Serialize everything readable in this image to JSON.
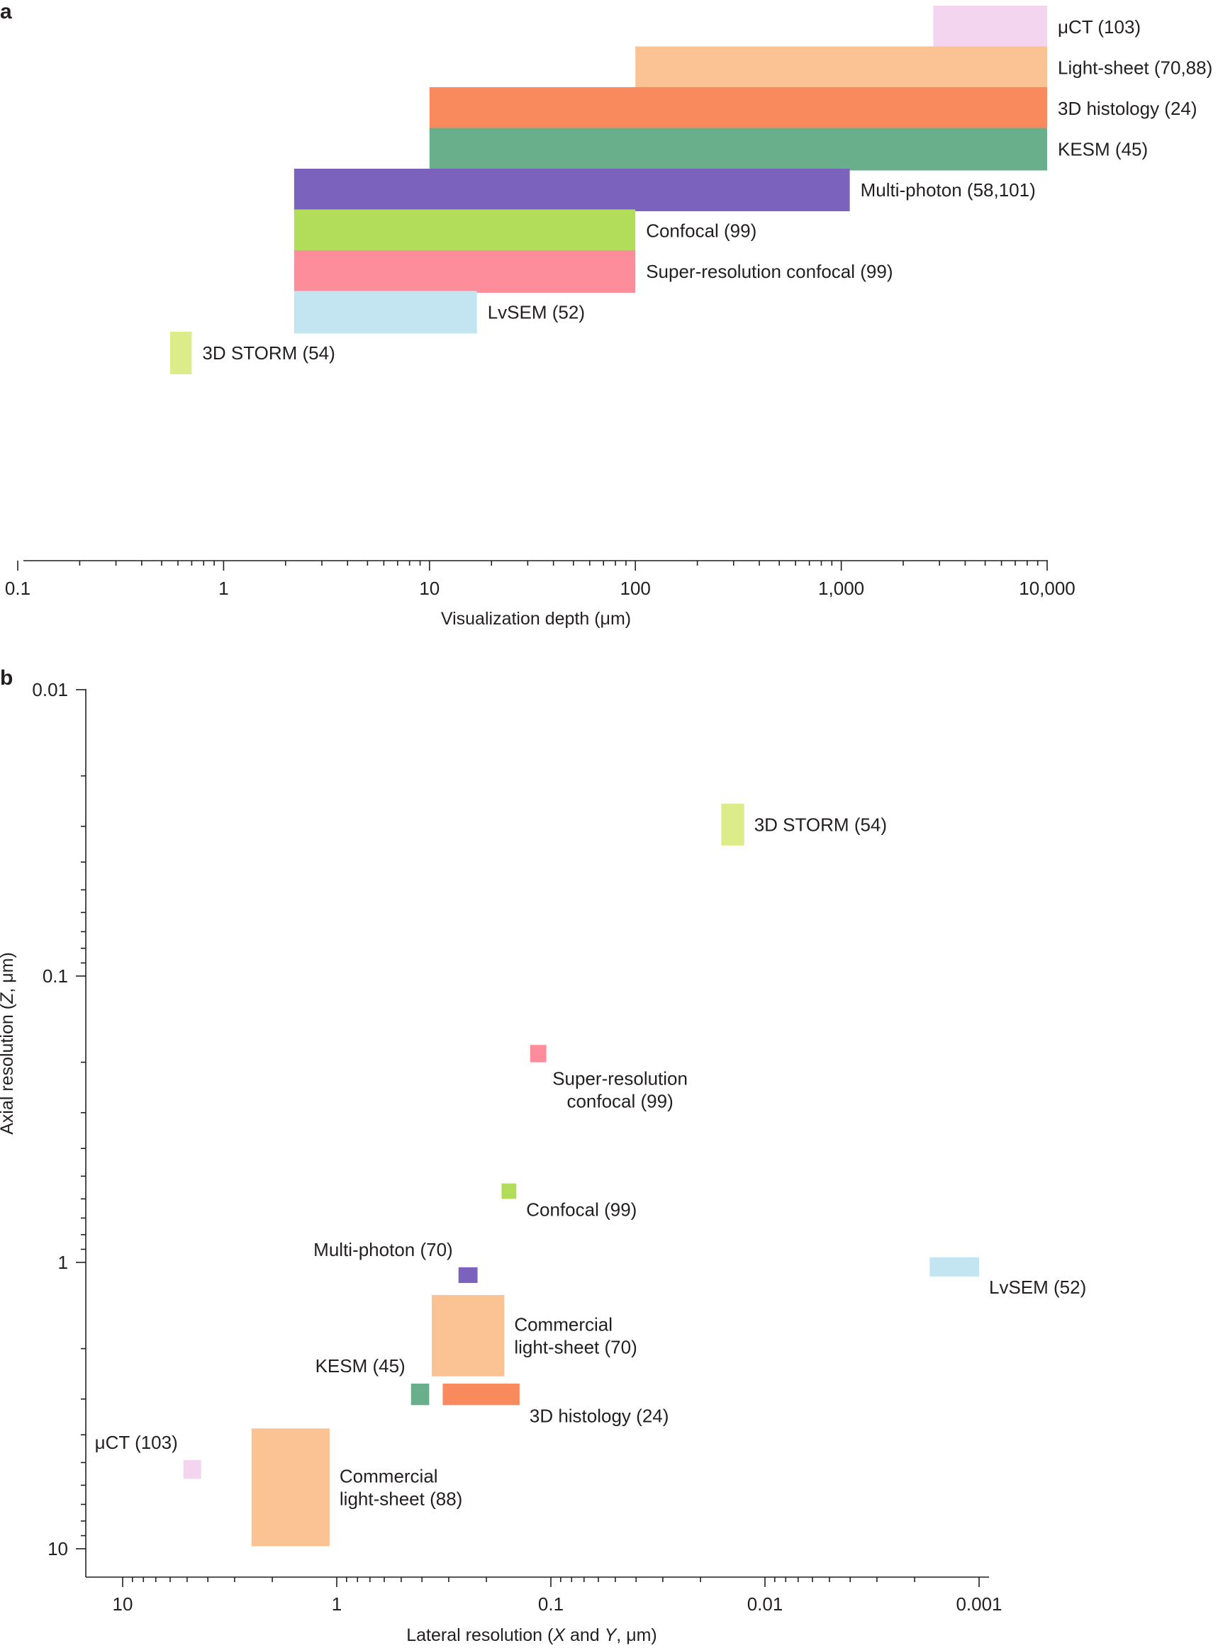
{
  "chart_data": [
    {
      "panel": "a",
      "type": "bar",
      "orientation": "horizontal",
      "xscale": "log",
      "xlabel": "Visualization depth (μm)",
      "xlim": [
        0.1,
        10000
      ],
      "xticks": [
        {
          "value": 0.1,
          "label": "0.1"
        },
        {
          "value": 1,
          "label": "1"
        },
        {
          "value": 10,
          "label": "10"
        },
        {
          "value": 100,
          "label": "100"
        },
        {
          "value": 1000,
          "label": "1,000"
        },
        {
          "value": 10000,
          "label": "10,000"
        }
      ],
      "series": [
        {
          "name": "μCT (103)",
          "min": 2800,
          "max": 10000,
          "color": "#f3d5f0"
        },
        {
          "name": "Light-sheet (70,88)",
          "min": 100,
          "max": 10000,
          "color": "#fbc394"
        },
        {
          "name": "3D histology (24)",
          "min": 10,
          "max": 10000,
          "color": "#f88a5e"
        },
        {
          "name": "KESM (45)",
          "min": 10,
          "max": 10000,
          "color": "#6aaf8b"
        },
        {
          "name": "Multi-photon (58,101)",
          "min": 2.2,
          "max": 1100,
          "color": "#7b63bd"
        },
        {
          "name": "Confocal (99)",
          "min": 2.2,
          "max": 100,
          "color": "#b2dd5b"
        },
        {
          "name": "Super-resolution confocal (99)",
          "min": 2.2,
          "max": 100,
          "color": "#fe8d9c"
        },
        {
          "name": "LvSEM (52)",
          "min": 2.2,
          "max": 17,
          "color": "#c3e5f2"
        },
        {
          "name": "3D STORM (54)",
          "min": 0.55,
          "max": 0.7,
          "color": "#dcec8a"
        }
      ]
    },
    {
      "panel": "b",
      "type": "scatter",
      "xscale": "log",
      "yscale": "log",
      "xreversed": true,
      "yreversed": true,
      "xlabel_parts": [
        {
          "text": "Lateral resolution (",
          "italic": false
        },
        {
          "text": "X",
          "italic": true
        },
        {
          "text": " and ",
          "italic": false
        },
        {
          "text": "Y",
          "italic": true
        },
        {
          "text": ", μm)",
          "italic": false
        }
      ],
      "ylabel_parts": [
        {
          "text": "Axial resolution (",
          "italic": false
        },
        {
          "text": "Z",
          "italic": true
        },
        {
          "text": ", μm)",
          "italic": false
        }
      ],
      "xlim": [
        10,
        0.001
      ],
      "ylim": [
        0.01,
        10
      ],
      "xticks": [
        {
          "value": 10,
          "label": "10"
        },
        {
          "value": 1,
          "label": "1"
        },
        {
          "value": 0.1,
          "label": "0.1"
        },
        {
          "value": 0.01,
          "label": "0.01"
        },
        {
          "value": 0.001,
          "label": "0.001"
        }
      ],
      "yticks": [
        {
          "value": 0.01,
          "label": "0.01"
        },
        {
          "value": 0.1,
          "label": "0.1"
        },
        {
          "value": 1,
          "label": "1"
        },
        {
          "value": 10,
          "label": "10"
        }
      ],
      "series": [
        {
          "name": "3D STORM (54)",
          "label_lines": [
            "3D STORM (54)"
          ],
          "x_range": [
            0.016,
            0.0125
          ],
          "y_range": [
            0.025,
            0.035
          ],
          "color": "#dcec8a",
          "label_anchor": "start"
        },
        {
          "name": "Super-resolution confocal (99)",
          "label_lines": [
            "Super-resolution",
            "confocal (99)"
          ],
          "x_range": [
            0.125,
            0.105
          ],
          "y_range": [
            0.174,
            0.2
          ],
          "color": "#fe8d9c",
          "label_anchor": "middle"
        },
        {
          "name": "Confocal (99)",
          "label_lines": [
            "Confocal (99)"
          ],
          "x_range": [
            0.17,
            0.145
          ],
          "y_range": [
            0.53,
            0.6
          ],
          "color": "#b2dd5b",
          "label_anchor": "start"
        },
        {
          "name": "Multi-photon (70)",
          "label_lines": [
            "Multi-photon (70)"
          ],
          "x_range": [
            0.27,
            0.22
          ],
          "y_range": [
            1.04,
            1.18
          ],
          "color": "#7b63bd",
          "label_anchor": "end"
        },
        {
          "name": "LvSEM (52)",
          "label_lines": [
            "LvSEM (52)"
          ],
          "x_range": [
            0.0017,
            0.001
          ],
          "y_range": [
            0.96,
            1.12
          ],
          "color": "#c3e5f2",
          "label_anchor": "start"
        },
        {
          "name": "Commercial light-sheet (70)",
          "label_lines": [
            "Commercial",
            "light-sheet (70)"
          ],
          "x_range": [
            0.36,
            0.165
          ],
          "y_range": [
            1.3,
            2.5
          ],
          "color": "#fbc394",
          "label_anchor": "start"
        },
        {
          "name": "KESM (45)",
          "label_lines": [
            "KESM (45)"
          ],
          "x_range": [
            0.45,
            0.37
          ],
          "y_range": [
            2.65,
            3.15
          ],
          "color": "#6aaf8b",
          "label_anchor": "end"
        },
        {
          "name": "3D histology (24)",
          "label_lines": [
            "3D histology (24)"
          ],
          "x_range": [
            0.32,
            0.14
          ],
          "y_range": [
            2.65,
            3.15
          ],
          "color": "#f88a5e",
          "label_anchor": "start"
        },
        {
          "name": "μCT (103)",
          "label_lines": [
            "μCT (103)"
          ],
          "x_range": [
            5.2,
            4.3
          ],
          "y_range": [
            4.9,
            5.7
          ],
          "color": "#f3d5f0",
          "label_anchor": "end"
        },
        {
          "name": "Commercial light-sheet (88)",
          "label_lines": [
            "Commercial",
            "light-sheet (88)"
          ],
          "x_range": [
            2.5,
            1.08
          ],
          "y_range": [
            3.8,
            9.8
          ],
          "color": "#fbc394",
          "label_anchor": "start"
        }
      ]
    }
  ],
  "panel_labels": {
    "a": "a",
    "b": "b"
  }
}
